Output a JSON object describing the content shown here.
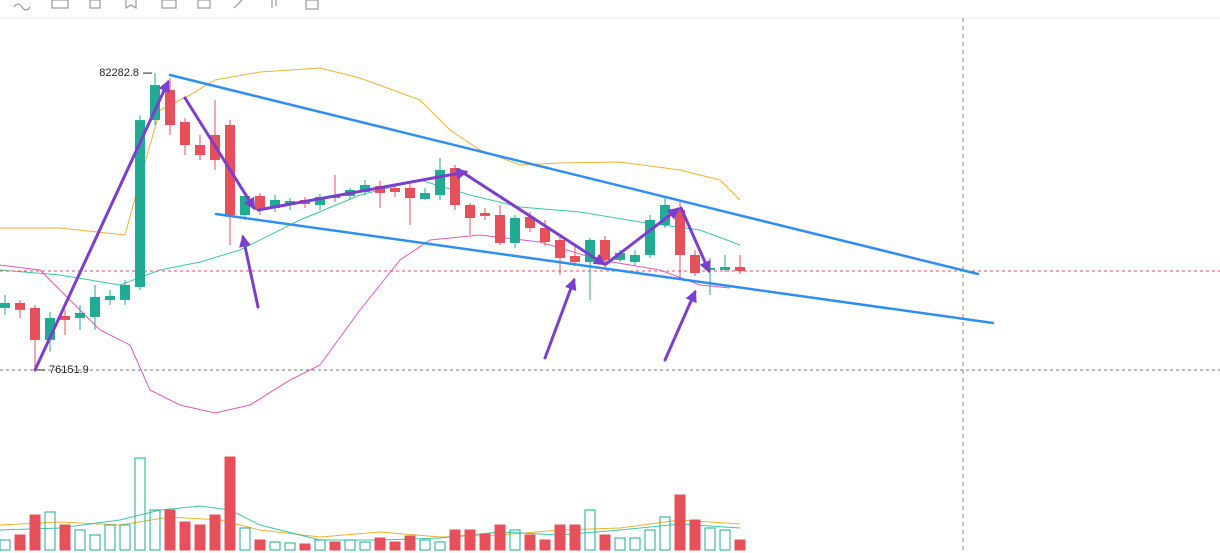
{
  "chart_data": {
    "type": "candlestick",
    "open": [
      77433,
      77536,
      77433,
      76772,
      77268,
      77226,
      77247,
      77598,
      77598,
      77866,
      81313,
      81932,
      81272,
      80797,
      81004,
      81210,
      79352,
      79745,
      79497,
      79559,
      79662,
      79559,
      79745,
      79745,
      79827,
      79951,
      79910,
      79910,
      79683,
      79765,
      80322,
      79559,
      79394,
      79352,
      78775,
      79311,
      79084,
      78836,
      78506,
      78382,
      78836,
      78424,
      78382,
      78527,
      79146,
      79456,
      78527,
      78217,
      78217,
      78279
    ],
    "high": [
      77701,
      77598,
      77495,
      77350,
      77392,
      77495,
      77908,
      77804,
      78011,
      81416,
      82282.8,
      82180,
      81354,
      81004,
      81726,
      81313,
      79807,
      79807,
      79765,
      79703,
      79724,
      79786,
      80178,
      79910,
      80075,
      80054,
      79972,
      80013,
      79910,
      80529,
      80384,
      79600,
      79497,
      79559,
      79352,
      79414,
      79249,
      78919,
      78733,
      78878,
      78919,
      78630,
      78630,
      79352,
      79703,
      79662,
      78630,
      78465,
      78527,
      78527
    ],
    "low": [
      77288,
      77226,
      76151.9,
      76525,
      76876,
      76979,
      76979,
      77495,
      77495,
      77804,
      81210,
      81004,
      80591,
      80488,
      80281,
      78733,
      79249,
      79352,
      79414,
      79456,
      79497,
      79456,
      79621,
      79662,
      79765,
      79497,
      79724,
      79146,
      79662,
      79662,
      79456,
      78940,
      79249,
      78733,
      78671,
      79002,
      78713,
      78114,
      78300,
      77598,
      78258,
      78382,
      78300,
      78465,
      79084,
      78052,
      78093,
      77701,
      78176,
      78135
    ],
    "close": [
      77536,
      77392,
      76772,
      77226,
      77185,
      77330,
      77660,
      77681,
      77908,
      81313,
      82036,
      81210,
      80797,
      80591,
      80488,
      79352,
      79745,
      79456,
      79662,
      79641,
      79579,
      79724,
      79703,
      79868,
      79972,
      79807,
      79827,
      79703,
      79807,
      80281,
      79559,
      79290,
      79332,
      78775,
      79290,
      79084,
      78795,
      78465,
      78382,
      78836,
      78424,
      78568,
      78527,
      79249,
      79559,
      78527,
      78155,
      78258,
      78279,
      78196
    ],
    "volume": [
      10,
      15,
      35,
      38,
      25,
      20,
      15,
      25,
      25,
      92,
      40,
      40,
      28,
      25,
      35,
      93,
      22,
      10,
      8,
      7,
      6,
      10,
      8,
      10,
      8,
      12,
      8,
      14,
      10,
      8,
      20,
      20,
      16,
      25,
      20,
      15,
      10,
      25,
      25,
      40,
      15,
      12,
      12,
      20,
      33,
      55,
      30,
      22,
      20,
      10
    ],
    "ylim": [
      75800,
      83400
    ],
    "volume_lim": [
      0,
      100
    ],
    "up_color": "#22ab94",
    "down_color": "#e5505a",
    "max_label": 82282.8,
    "min_label": 76151.9,
    "last_price": 78196
  }
}
